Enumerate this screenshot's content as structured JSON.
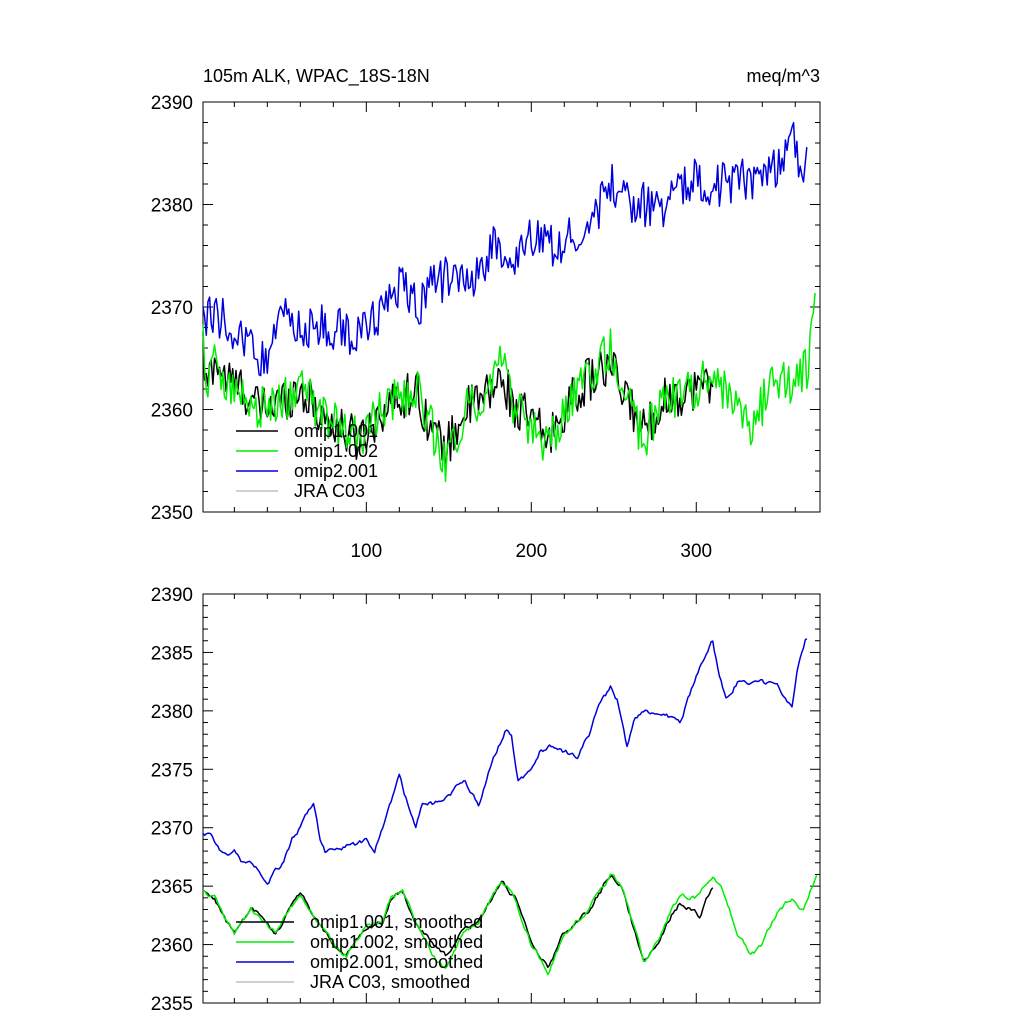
{
  "figure": {
    "title_left": "105m ALK, WPAC_18S-18N",
    "title_right": "meq/m^3"
  },
  "chart_data": [
    {
      "type": "line",
      "title": "105m ALK, WPAC_18S-18N",
      "units": "meq/m^3",
      "xlim": [
        1,
        375
      ],
      "ylim": [
        2350,
        2390
      ],
      "xticks": [
        100,
        200,
        300
      ],
      "yticks": [
        2350,
        2360,
        2370,
        2380,
        2390
      ],
      "legend_position": "lower-left",
      "series": [
        {
          "name": "omip1.001",
          "color": "#000000",
          "x_start": 1,
          "x_end": 310,
          "knots": [
            [
              1,
              2366
            ],
            [
              3,
              2362
            ],
            [
              8,
              2365
            ],
            [
              15,
              2363
            ],
            [
              25,
              2362
            ],
            [
              35,
              2360
            ],
            [
              50,
              2361
            ],
            [
              60,
              2362
            ],
            [
              70,
              2360
            ],
            [
              85,
              2358
            ],
            [
              95,
              2357
            ],
            [
              110,
              2360
            ],
            [
              120,
              2361
            ],
            [
              130,
              2362
            ],
            [
              140,
              2358
            ],
            [
              148,
              2356
            ],
            [
              160,
              2360
            ],
            [
              170,
              2361
            ],
            [
              183,
              2363
            ],
            [
              190,
              2360
            ],
            [
              200,
              2359
            ],
            [
              210,
              2357
            ],
            [
              220,
              2360
            ],
            [
              235,
              2363
            ],
            [
              248,
              2364
            ],
            [
              258,
              2361
            ],
            [
              268,
              2358
            ],
            [
              280,
              2361
            ],
            [
              300,
              2362
            ],
            [
              310,
              2363
            ]
          ]
        },
        {
          "name": "omip1.002",
          "color": "#00ee00",
          "x_start": 1,
          "x_end": 372,
          "knots": [
            [
              1,
              2367
            ],
            [
              3,
              2362
            ],
            [
              8,
              2365
            ],
            [
              15,
              2363
            ],
            [
              25,
              2361
            ],
            [
              35,
              2360
            ],
            [
              50,
              2361
            ],
            [
              60,
              2362
            ],
            [
              70,
              2360
            ],
            [
              85,
              2358
            ],
            [
              95,
              2357
            ],
            [
              110,
              2360
            ],
            [
              120,
              2361
            ],
            [
              130,
              2362
            ],
            [
              140,
              2358
            ],
            [
              148,
              2355
            ],
            [
              160,
              2360
            ],
            [
              170,
              2361
            ],
            [
              183,
              2365
            ],
            [
              190,
              2360
            ],
            [
              200,
              2358
            ],
            [
              210,
              2356
            ],
            [
              220,
              2360
            ],
            [
              235,
              2363
            ],
            [
              248,
              2366
            ],
            [
              258,
              2361
            ],
            [
              268,
              2357
            ],
            [
              280,
              2361
            ],
            [
              300,
              2362
            ],
            [
              310,
              2364
            ],
            [
              320,
              2361
            ],
            [
              332,
              2358
            ],
            [
              345,
              2362
            ],
            [
              360,
              2363
            ],
            [
              368,
              2364
            ],
            [
              372,
              2371
            ]
          ]
        },
        {
          "name": "omip2.001",
          "color": "#0000dd",
          "x_start": 1,
          "x_end": 367,
          "knots": [
            [
              1,
              2369
            ],
            [
              10,
              2369
            ],
            [
              20,
              2368
            ],
            [
              30,
              2366
            ],
            [
              40,
              2365
            ],
            [
              50,
              2369
            ],
            [
              60,
              2368
            ],
            [
              70,
              2368
            ],
            [
              80,
              2368
            ],
            [
              95,
              2367
            ],
            [
              110,
              2370
            ],
            [
              120,
              2372
            ],
            [
              130,
              2370
            ],
            [
              140,
              2372
            ],
            [
              150,
              2373
            ],
            [
              160,
              2372
            ],
            [
              170,
              2374
            ],
            [
              178,
              2376
            ],
            [
              185,
              2374
            ],
            [
              195,
              2376
            ],
            [
              205,
              2377
            ],
            [
              215,
              2376
            ],
            [
              225,
              2377
            ],
            [
              240,
              2379
            ],
            [
              248,
              2382
            ],
            [
              260,
              2380
            ],
            [
              270,
              2380
            ],
            [
              280,
              2380
            ],
            [
              290,
              2381
            ],
            [
              300,
              2383
            ],
            [
              308,
              2382
            ],
            [
              320,
              2382
            ],
            [
              340,
              2383
            ],
            [
              350,
              2384
            ],
            [
              358,
              2387
            ],
            [
              365,
              2383
            ],
            [
              367,
              2385
            ]
          ]
        },
        {
          "name": "JRA C03",
          "color": "#c0c0c0",
          "x_start": 1,
          "x_end": 1,
          "knots": []
        }
      ]
    },
    {
      "type": "line",
      "title": "",
      "xlim": [
        1,
        375
      ],
      "ylim": [
        2355,
        2390
      ],
      "xticks": [
        100,
        200,
        300
      ],
      "yticks": [
        2355,
        2360,
        2365,
        2370,
        2375,
        2380,
        2385,
        2390
      ],
      "legend_position": "lower-left",
      "series": [
        {
          "name": "omip1.001, smoothed",
          "color": "#000000",
          "x_start": 1,
          "x_end": 310,
          "knots": [
            [
              1,
              2364.5
            ],
            [
              8,
              2364
            ],
            [
              15,
              2362
            ],
            [
              20,
              2361
            ],
            [
              25,
              2362
            ],
            [
              30,
              2363
            ],
            [
              35,
              2362.5
            ],
            [
              45,
              2361
            ],
            [
              60,
              2364.5
            ],
            [
              70,
              2362
            ],
            [
              80,
              2360
            ],
            [
              88,
              2359
            ],
            [
              100,
              2361.5
            ],
            [
              110,
              2362
            ],
            [
              115,
              2364
            ],
            [
              122,
              2364.5
            ],
            [
              130,
              2362
            ],
            [
              140,
              2360
            ],
            [
              148,
              2359
            ],
            [
              158,
              2361
            ],
            [
              168,
              2362
            ],
            [
              182,
              2365.5
            ],
            [
              190,
              2364
            ],
            [
              200,
              2360
            ],
            [
              210,
              2358
            ],
            [
              220,
              2361
            ],
            [
              235,
              2363
            ],
            [
              248,
              2366
            ],
            [
              255,
              2365
            ],
            [
              268,
              2358.5
            ],
            [
              276,
              2360
            ],
            [
              285,
              2362.5
            ],
            [
              290,
              2363.5
            ],
            [
              298,
              2363
            ],
            [
              302,
              2362.5
            ],
            [
              310,
              2365
            ]
          ]
        },
        {
          "name": "omip1.002, smoothed",
          "color": "#00ee00",
          "x_start": 1,
          "x_end": 373,
          "knots": [
            [
              1,
              2364.5
            ],
            [
              8,
              2364
            ],
            [
              15,
              2362
            ],
            [
              20,
              2361
            ],
            [
              25,
              2362
            ],
            [
              30,
              2363
            ],
            [
              35,
              2362.5
            ],
            [
              45,
              2361
            ],
            [
              60,
              2364.5
            ],
            [
              70,
              2362
            ],
            [
              80,
              2360
            ],
            [
              88,
              2359
            ],
            [
              100,
              2361.5
            ],
            [
              110,
              2362
            ],
            [
              115,
              2364
            ],
            [
              122,
              2364.5
            ],
            [
              130,
              2362
            ],
            [
              140,
              2359
            ],
            [
              148,
              2358
            ],
            [
              158,
              2361
            ],
            [
              168,
              2362
            ],
            [
              182,
              2365.5
            ],
            [
              190,
              2364
            ],
            [
              200,
              2360
            ],
            [
              210,
              2357.5
            ],
            [
              220,
              2361
            ],
            [
              235,
              2363
            ],
            [
              248,
              2366
            ],
            [
              255,
              2365
            ],
            [
              268,
              2358.5
            ],
            [
              276,
              2360
            ],
            [
              285,
              2363
            ],
            [
              290,
              2364
            ],
            [
              300,
              2364
            ],
            [
              310,
              2366
            ],
            [
              318,
              2364
            ],
            [
              325,
              2361
            ],
            [
              333,
              2359
            ],
            [
              340,
              2360
            ],
            [
              350,
              2363
            ],
            [
              358,
              2364
            ],
            [
              365,
              2363
            ],
            [
              370,
              2365
            ],
            [
              373,
              2366
            ]
          ]
        },
        {
          "name": "omip2.001, smoothed",
          "color": "#0000dd",
          "x_start": 1,
          "x_end": 367,
          "knots": [
            [
              1,
              2369.5
            ],
            [
              5,
              2369.5
            ],
            [
              10,
              2368.5
            ],
            [
              15,
              2367.5
            ],
            [
              20,
              2368
            ],
            [
              25,
              2367
            ],
            [
              30,
              2367
            ],
            [
              40,
              2365.5
            ],
            [
              50,
              2367
            ],
            [
              55,
              2369
            ],
            [
              60,
              2370
            ],
            [
              65,
              2371.5
            ],
            [
              68,
              2372
            ],
            [
              72,
              2369
            ],
            [
              75,
              2368
            ],
            [
              80,
              2368
            ],
            [
              90,
              2368.5
            ],
            [
              95,
              2368.5
            ],
            [
              100,
              2369
            ],
            [
              105,
              2368
            ],
            [
              112,
              2371
            ],
            [
              118,
              2373.5
            ],
            [
              120,
              2374.5
            ],
            [
              123,
              2373
            ],
            [
              130,
              2370
            ],
            [
              134,
              2372
            ],
            [
              140,
              2372
            ],
            [
              150,
              2372.5
            ],
            [
              157,
              2374
            ],
            [
              160,
              2374
            ],
            [
              168,
              2372
            ],
            [
              175,
              2375
            ],
            [
              180,
              2377
            ],
            [
              185,
              2378.5
            ],
            [
              188,
              2378
            ],
            [
              192,
              2374
            ],
            [
              197,
              2374.5
            ],
            [
              205,
              2376.5
            ],
            [
              212,
              2377
            ],
            [
              220,
              2376.5
            ],
            [
              228,
              2376
            ],
            [
              235,
              2378
            ],
            [
              240,
              2380
            ],
            [
              248,
              2382
            ],
            [
              252,
              2381
            ],
            [
              258,
              2377
            ],
            [
              262,
              2379
            ],
            [
              268,
              2380
            ],
            [
              280,
              2380
            ],
            [
              290,
              2379
            ],
            [
              300,
              2383
            ],
            [
              306,
              2385
            ],
            [
              310,
              2386
            ],
            [
              314,
              2383
            ],
            [
              318,
              2381
            ],
            [
              325,
              2382.5
            ],
            [
              335,
              2382.5
            ],
            [
              340,
              2382.5
            ],
            [
              350,
              2382
            ],
            [
              355,
              2381
            ],
            [
              358,
              2380.5
            ],
            [
              362,
              2384
            ],
            [
              366,
              2386
            ],
            [
              367,
              2386
            ]
          ]
        },
        {
          "name": "JRA C03, smoothed",
          "color": "#c0c0c0",
          "x_start": 1,
          "x_end": 1,
          "knots": []
        }
      ]
    }
  ]
}
